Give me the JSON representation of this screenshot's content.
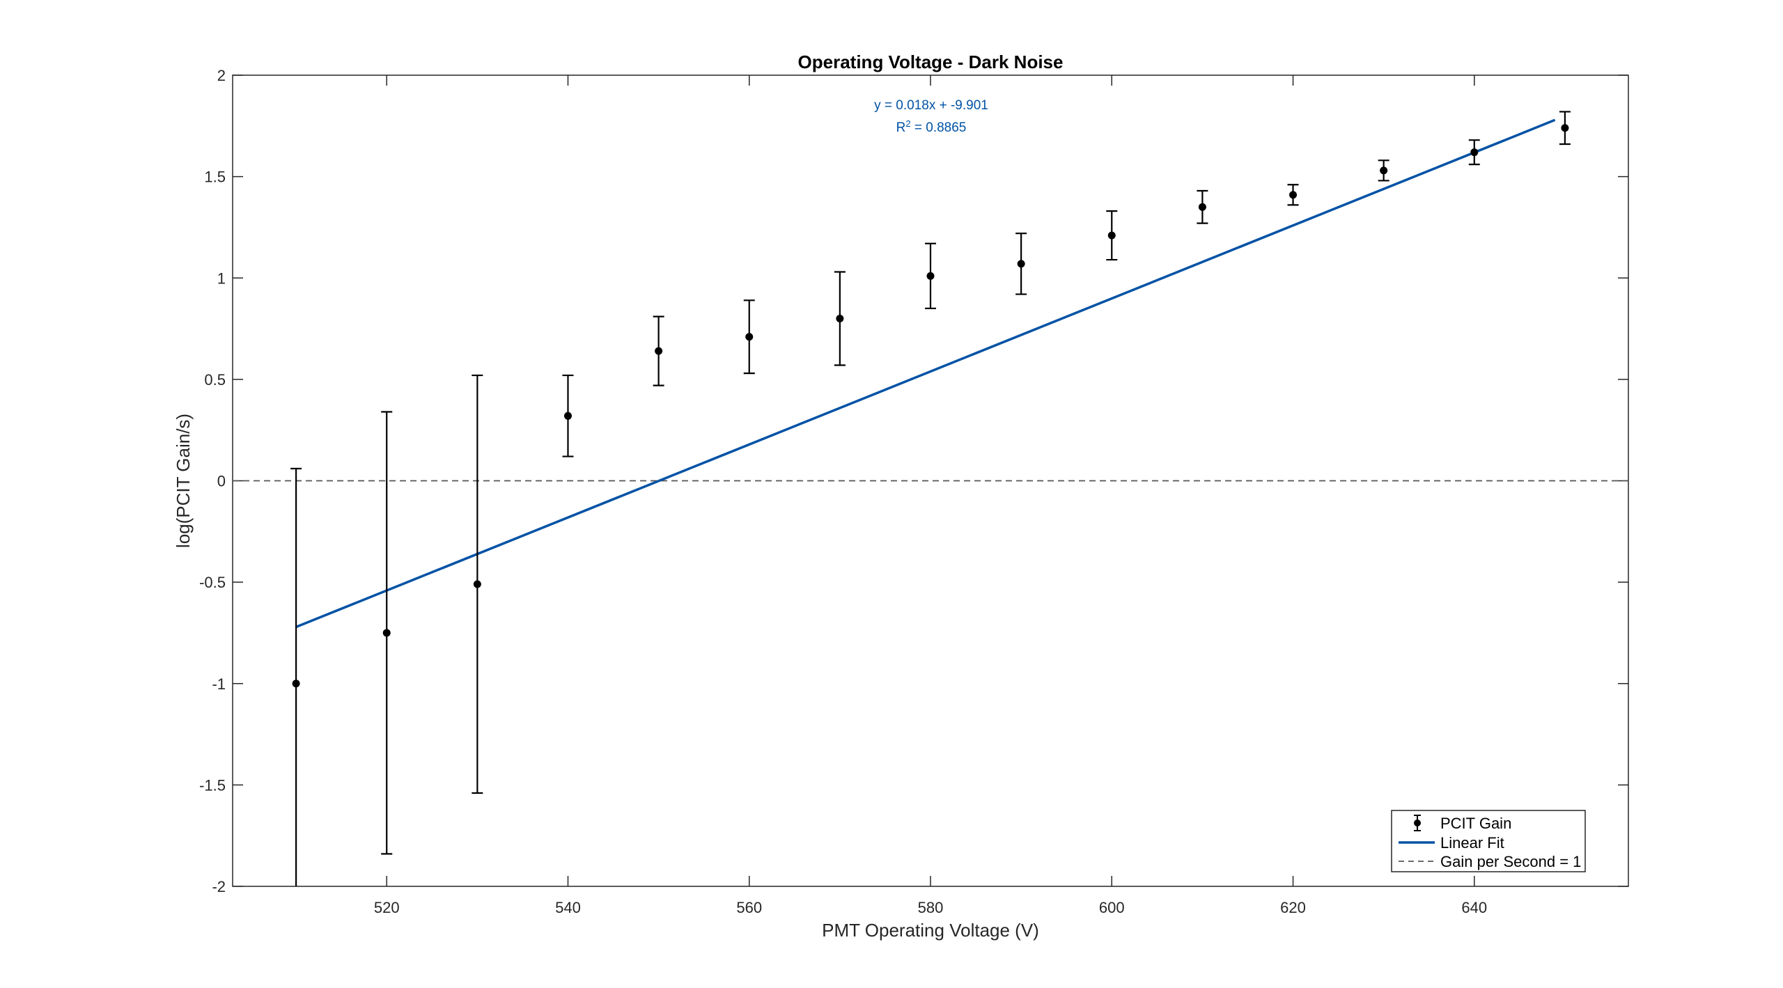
{
  "chart_data": {
    "type": "scatter",
    "title": "Operating Voltage - Dark Noise",
    "xlabel": "PMT Operating Voltage (V)",
    "ylabel": "log(PCIT Gain/s)",
    "xlim": [
      503,
      657
    ],
    "ylim": [
      -2,
      2
    ],
    "xticks": [
      520,
      540,
      560,
      580,
      600,
      620,
      640
    ],
    "yticks": [
      -2,
      -1.5,
      -1,
      -0.5,
      0,
      0.5,
      1,
      1.5,
      2
    ],
    "xtick_labels": [
      "520",
      "540",
      "560",
      "580",
      "600",
      "620",
      "640"
    ],
    "ytick_labels": [
      "-2",
      "-1.5",
      "-1",
      "-0.5",
      "0",
      "0.5",
      "1",
      "1.5",
      "2"
    ],
    "grid": false,
    "legend_position": "bottom-right",
    "series": [
      {
        "name": "PCIT Gain",
        "kind": "errorbar",
        "color": "#000000",
        "x": [
          510,
          520,
          530,
          540,
          550,
          560,
          570,
          580,
          590,
          600,
          610,
          620,
          630,
          640,
          650
        ],
        "y": [
          -1.0,
          -0.75,
          -0.51,
          0.32,
          0.64,
          0.71,
          0.8,
          1.01,
          1.07,
          1.21,
          1.35,
          1.41,
          1.53,
          1.62,
          1.74
        ],
        "err": [
          1.06,
          1.09,
          1.03,
          0.2,
          0.17,
          0.18,
          0.23,
          0.16,
          0.15,
          0.12,
          0.08,
          0.05,
          0.05,
          0.06,
          0.08
        ]
      },
      {
        "name": "Linear Fit",
        "kind": "line",
        "color": "#0052a5",
        "slope": 0.018,
        "intercept": -9.901,
        "x_range": [
          510,
          648.9
        ]
      },
      {
        "name": "Gain per Second = 1",
        "kind": "hline",
        "color": "#555555",
        "dash": true,
        "y": 0
      }
    ],
    "annotations": {
      "equation": "y = 0.018x + -9.901",
      "r2_prefix": "R",
      "r2_exponent": "2",
      "r2_value": " = 0.8865",
      "color": "#0052a5"
    }
  }
}
